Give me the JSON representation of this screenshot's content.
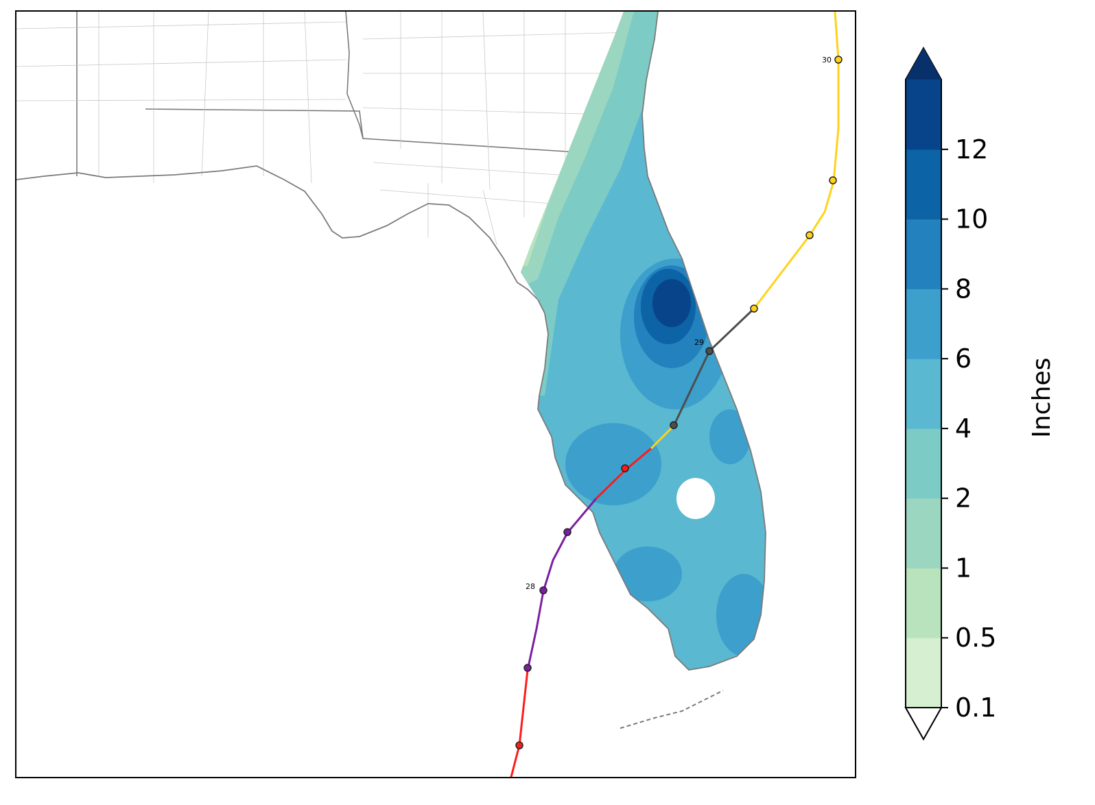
{
  "map": {
    "track_day_labels": [
      "28",
      "29",
      "30"
    ]
  },
  "colorbar": {
    "title": "Inches",
    "tick_labels": [
      "0.1",
      "0.5",
      "1",
      "2",
      "4",
      "6",
      "8",
      "10",
      "12"
    ],
    "colors": [
      "#d6efd0",
      "#b8e3bd",
      "#9bd6c0",
      "#7ccbc5",
      "#5ab8d1",
      "#3d9fcc",
      "#2381be",
      "#0c63a6",
      "#08448a"
    ],
    "extend": "both"
  },
  "track_colors": {
    "hurricane_major": "#ff1a1a",
    "hurricane_cat4": "#7b1fa2",
    "tropical_storm": "#ffd21a",
    "post_landfall": "#4d4d4d"
  }
}
